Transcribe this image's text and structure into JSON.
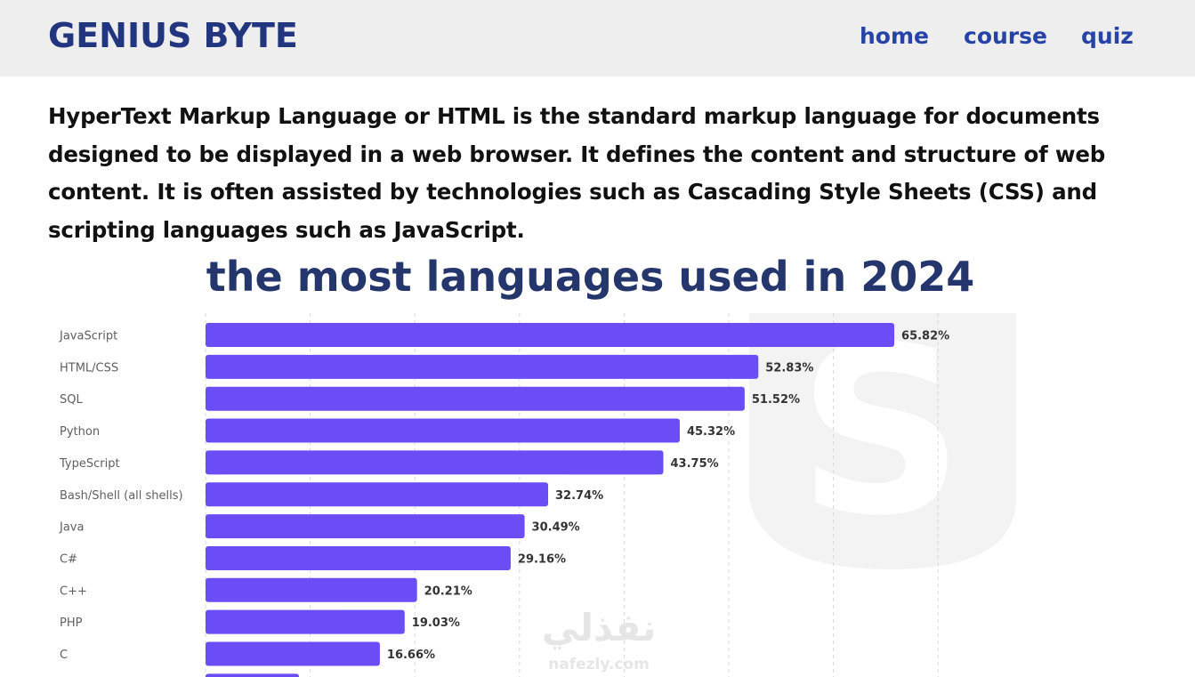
{
  "header": {
    "brand": "GENIUS BYTE",
    "nav": {
      "home": "home",
      "course": "course",
      "quiz": "quiz"
    }
  },
  "intro": {
    "text": "HyperText Markup Language or HTML is the standard markup language for documents designed to be displayed in a web browser. It defines the content and structure of web content. It is often assisted by technologies such as Cascading Style Sheets (CSS) and scripting languages such as JavaScript."
  },
  "colors": {
    "brand": "#22357f",
    "nav": "#2544a6",
    "bar": "#6b4df5",
    "title": "#25366d"
  },
  "chart_data": {
    "type": "bar",
    "orientation": "horizontal",
    "title": "the most languages used in 2024",
    "categories": [
      "JavaScript",
      "HTML/CSS",
      "SQL",
      "Python",
      "TypeScript",
      "Bash/Shell (all shells)",
      "Java",
      "C#",
      "C++",
      "PHP",
      "C"
    ],
    "values": [
      65.82,
      52.83,
      51.52,
      45.32,
      43.75,
      32.74,
      30.49,
      29.16,
      20.21,
      19.03,
      16.66
    ],
    "value_labels": [
      "65.82%",
      "52.83%",
      "51.52%",
      "45.32%",
      "43.75%",
      "32.74%",
      "30.49%",
      "29.16%",
      "20.21%",
      "19.03%",
      "16.66%"
    ],
    "xlim": [
      0,
      100
    ],
    "grid": true,
    "unit": "%"
  }
}
